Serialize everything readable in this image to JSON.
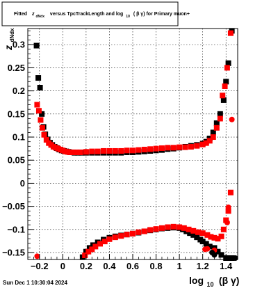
{
  "title": {
    "prefix": "Fitted",
    "var": "z",
    "var_sub": "dNdx",
    "mid": "versus TpcTrackLength and log",
    "log_sub": "10",
    "args": "( β γ) for Primary muon+"
  },
  "timestamp": "Sun Dec  1 10:30:04 2024",
  "chart_data": {
    "type": "scatter",
    "title": "Fitted z_dNdx versus TpcTrackLength and log_10 (β γ) for Primary muon+",
    "xlabel_main": "log",
    "xlabel_sub": "10",
    "xlabel_tail": "(β γ)",
    "ylabel_main": "z",
    "ylabel_sub": "dNdx",
    "xlim": [
      -0.3,
      1.5
    ],
    "ylim": [
      -0.165,
      0.335
    ],
    "xticks": [
      -0.2,
      0,
      0.2,
      0.4,
      0.6,
      0.8,
      1,
      1.2,
      1.4
    ],
    "xtick_labels": [
      "−0.2",
      "0",
      "0.2",
      "0.4",
      "0.6",
      "0.8",
      "1",
      "1.2",
      "1.4"
    ],
    "yticks": [
      -0.15,
      -0.1,
      -0.05,
      0,
      0.05,
      0.1,
      0.15,
      0.2,
      0.25,
      0.3
    ],
    "ytick_labels": [
      "−0.15",
      "−0.1",
      "−0.05",
      "0",
      "0.05",
      "0.1",
      "0.15",
      "0.2",
      "0.25",
      "0.3"
    ],
    "grid": true,
    "series": [
      {
        "marker": "square",
        "color": "#000000",
        "points": [
          [
            -0.225,
            0.298
          ],
          [
            -0.21,
            0.228
          ],
          [
            -0.195,
            0.207
          ],
          [
            -0.18,
            0.15
          ],
          [
            -0.165,
            0.122
          ],
          [
            -0.15,
            0.106
          ],
          [
            -0.13,
            0.095
          ],
          [
            -0.11,
            0.088
          ],
          [
            -0.09,
            0.083
          ],
          [
            -0.07,
            0.079
          ],
          [
            -0.05,
            0.076
          ],
          [
            -0.03,
            0.073
          ],
          [
            -0.01,
            0.071
          ],
          [
            0.01,
            0.07
          ],
          [
            0.03,
            0.069
          ],
          [
            0.05,
            0.068
          ],
          [
            0.07,
            0.067
          ],
          [
            0.1,
            0.066
          ],
          [
            0.13,
            0.066
          ],
          [
            0.16,
            0.066
          ],
          [
            0.2,
            0.066
          ],
          [
            0.25,
            0.066
          ],
          [
            0.3,
            0.066
          ],
          [
            0.35,
            0.066
          ],
          [
            0.4,
            0.066
          ],
          [
            0.45,
            0.066
          ],
          [
            0.5,
            0.066
          ],
          [
            0.55,
            0.067
          ],
          [
            0.6,
            0.067
          ],
          [
            0.65,
            0.068
          ],
          [
            0.7,
            0.069
          ],
          [
            0.75,
            0.07
          ],
          [
            0.8,
            0.071
          ],
          [
            0.85,
            0.072
          ],
          [
            0.9,
            0.074
          ],
          [
            0.95,
            0.075
          ],
          [
            1.0,
            0.077
          ],
          [
            1.05,
            0.079
          ],
          [
            1.1,
            0.081
          ],
          [
            1.15,
            0.083
          ],
          [
            1.2,
            0.086
          ],
          [
            1.23,
            0.09
          ],
          [
            1.26,
            0.097
          ],
          [
            1.29,
            0.11
          ],
          [
            1.32,
            0.13
          ],
          [
            1.35,
            0.15
          ],
          [
            1.38,
            0.18
          ],
          [
            1.4,
            0.22
          ],
          [
            1.42,
            0.26
          ],
          [
            1.45,
            0.33
          ],
          [
            0.17,
            -0.16
          ],
          [
            0.2,
            -0.148
          ],
          [
            0.23,
            -0.14
          ],
          [
            0.26,
            -0.134
          ],
          [
            0.3,
            -0.128
          ],
          [
            0.35,
            -0.122
          ],
          [
            0.4,
            -0.118
          ],
          [
            0.45,
            -0.115
          ],
          [
            0.5,
            -0.113
          ],
          [
            0.55,
            -0.111
          ],
          [
            0.6,
            -0.109
          ],
          [
            0.65,
            -0.107
          ],
          [
            0.7,
            -0.104
          ],
          [
            0.75,
            -0.102
          ],
          [
            0.8,
            -0.1
          ],
          [
            0.85,
            -0.098
          ],
          [
            0.9,
            -0.097
          ],
          [
            0.95,
            -0.096
          ],
          [
            1.0,
            -0.097
          ],
          [
            1.03,
            -0.1
          ],
          [
            1.06,
            -0.104
          ],
          [
            1.09,
            -0.108
          ],
          [
            1.12,
            -0.112
          ],
          [
            1.15,
            -0.117
          ],
          [
            1.18,
            -0.122
          ],
          [
            1.2,
            -0.126
          ],
          [
            1.23,
            -0.131
          ],
          [
            1.26,
            -0.137
          ],
          [
            1.3,
            -0.14
          ],
          [
            1.33,
            -0.148
          ],
          [
            1.36,
            -0.155
          ],
          [
            1.4,
            -0.162
          ],
          [
            1.42,
            -0.162
          ],
          [
            1.45,
            -0.162
          ]
        ]
      },
      {
        "marker": "square",
        "color": "#ff0000",
        "points": [
          [
            -0.22,
            0.17
          ],
          [
            -0.205,
            0.157
          ],
          [
            -0.19,
            0.137
          ],
          [
            -0.175,
            0.12
          ],
          [
            -0.16,
            0.105
          ],
          [
            -0.14,
            0.094
          ],
          [
            -0.12,
            0.087
          ],
          [
            -0.1,
            0.083
          ],
          [
            -0.08,
            0.079
          ],
          [
            -0.06,
            0.077
          ],
          [
            -0.04,
            0.075
          ],
          [
            -0.02,
            0.073
          ],
          [
            0.0,
            0.071
          ],
          [
            0.02,
            0.069
          ],
          [
            0.04,
            0.068
          ],
          [
            0.06,
            0.067
          ],
          [
            0.09,
            0.067
          ],
          [
            0.12,
            0.067
          ],
          [
            0.15,
            0.067
          ],
          [
            0.2,
            0.068
          ],
          [
            0.25,
            0.069
          ],
          [
            0.3,
            0.069
          ],
          [
            0.35,
            0.07
          ],
          [
            0.4,
            0.07
          ],
          [
            0.45,
            0.07
          ],
          [
            0.5,
            0.07
          ],
          [
            0.55,
            0.071
          ],
          [
            0.6,
            0.071
          ],
          [
            0.65,
            0.072
          ],
          [
            0.7,
            0.073
          ],
          [
            0.75,
            0.074
          ],
          [
            0.8,
            0.075
          ],
          [
            0.85,
            0.076
          ],
          [
            0.9,
            0.077
          ],
          [
            0.95,
            0.077
          ],
          [
            1.0,
            0.078
          ],
          [
            1.05,
            0.078
          ],
          [
            1.1,
            0.079
          ],
          [
            1.15,
            0.081
          ],
          [
            1.2,
            0.084
          ],
          [
            1.23,
            0.087
          ],
          [
            1.26,
            0.092
          ],
          [
            1.29,
            0.1
          ],
          [
            1.32,
            0.12
          ],
          [
            1.35,
            0.14
          ],
          [
            1.37,
            0.19
          ],
          [
            1.39,
            0.21
          ],
          [
            1.41,
            0.25
          ],
          [
            1.44,
            0.325
          ],
          [
            0.19,
            -0.156
          ],
          [
            0.22,
            -0.148
          ],
          [
            0.25,
            -0.143
          ],
          [
            0.28,
            -0.137
          ],
          [
            0.32,
            -0.131
          ],
          [
            0.36,
            -0.126
          ],
          [
            0.4,
            -0.121
          ],
          [
            0.45,
            -0.117
          ],
          [
            0.5,
            -0.114
          ],
          [
            0.55,
            -0.111
          ],
          [
            0.6,
            -0.109
          ],
          [
            0.65,
            -0.106
          ],
          [
            0.7,
            -0.104
          ],
          [
            0.75,
            -0.101
          ],
          [
            0.8,
            -0.099
          ],
          [
            0.85,
            -0.097
          ],
          [
            0.9,
            -0.095
          ],
          [
            0.95,
            -0.094
          ],
          [
            1.0,
            -0.095
          ],
          [
            1.04,
            -0.097
          ],
          [
            1.08,
            -0.1
          ],
          [
            1.12,
            -0.103
          ],
          [
            1.16,
            -0.106
          ],
          [
            1.2,
            -0.108
          ],
          [
            1.24,
            -0.112
          ],
          [
            1.27,
            -0.116
          ],
          [
            1.3,
            -0.118
          ],
          [
            1.33,
            -0.12
          ],
          [
            1.36,
            -0.115
          ],
          [
            1.38,
            -0.1
          ],
          [
            1.4,
            -0.08
          ],
          [
            1.42,
            -0.06
          ],
          [
            1.44,
            -0.02
          ]
        ]
      },
      {
        "marker": "circle",
        "color": "#ff0000",
        "points": [
          [
            -0.22,
            -0.158
          ],
          [
            1.22,
            -0.143
          ],
          [
            1.24,
            -0.142
          ],
          [
            1.3,
            -0.145
          ],
          [
            1.41,
            -0.085
          ],
          [
            1.42,
            -0.052
          ],
          [
            1.45,
            0.138
          ]
        ]
      },
      {
        "marker": "circle",
        "color": "#000000",
        "points": [
          [
            1.28,
            -0.15
          ],
          [
            1.3,
            -0.155
          ],
          [
            1.46,
            -0.162
          ],
          [
            1.48,
            -0.162
          ]
        ]
      }
    ]
  }
}
